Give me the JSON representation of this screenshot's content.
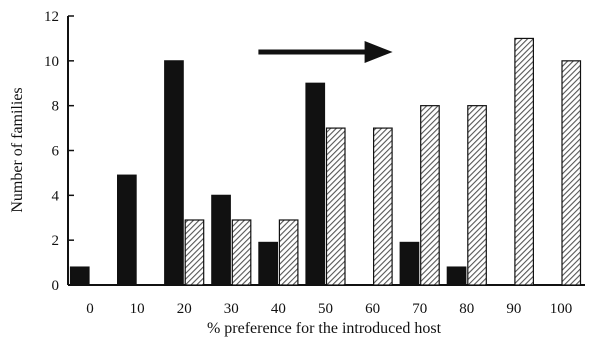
{
  "chart_data": {
    "type": "bar",
    "title": "",
    "xlabel": "% preference for the introduced host",
    "ylabel": "Number of families",
    "categories": [
      "0",
      "10",
      "20",
      "30",
      "40",
      "50",
      "60",
      "70",
      "80",
      "90",
      "100"
    ],
    "series": [
      {
        "values": [
          0.8,
          4.9,
          10,
          4,
          1.9,
          9,
          0,
          1.9,
          0.8,
          0,
          0
        ],
        "color": "#111111",
        "pattern": "solid"
      },
      {
        "values": [
          0,
          0,
          2.9,
          2.9,
          2.9,
          7,
          7,
          8,
          8,
          11,
          10
        ],
        "color": "#9a9a9a",
        "pattern": "diagonal-hatch"
      }
    ],
    "ylim": [
      0,
      12
    ],
    "yticks": [
      0,
      2,
      4,
      6,
      8,
      10,
      12
    ],
    "grid": false,
    "legend": "none",
    "annotations": [
      {
        "type": "arrow",
        "direction": "right",
        "from_category": "40",
        "to_category": "60"
      }
    ]
  }
}
